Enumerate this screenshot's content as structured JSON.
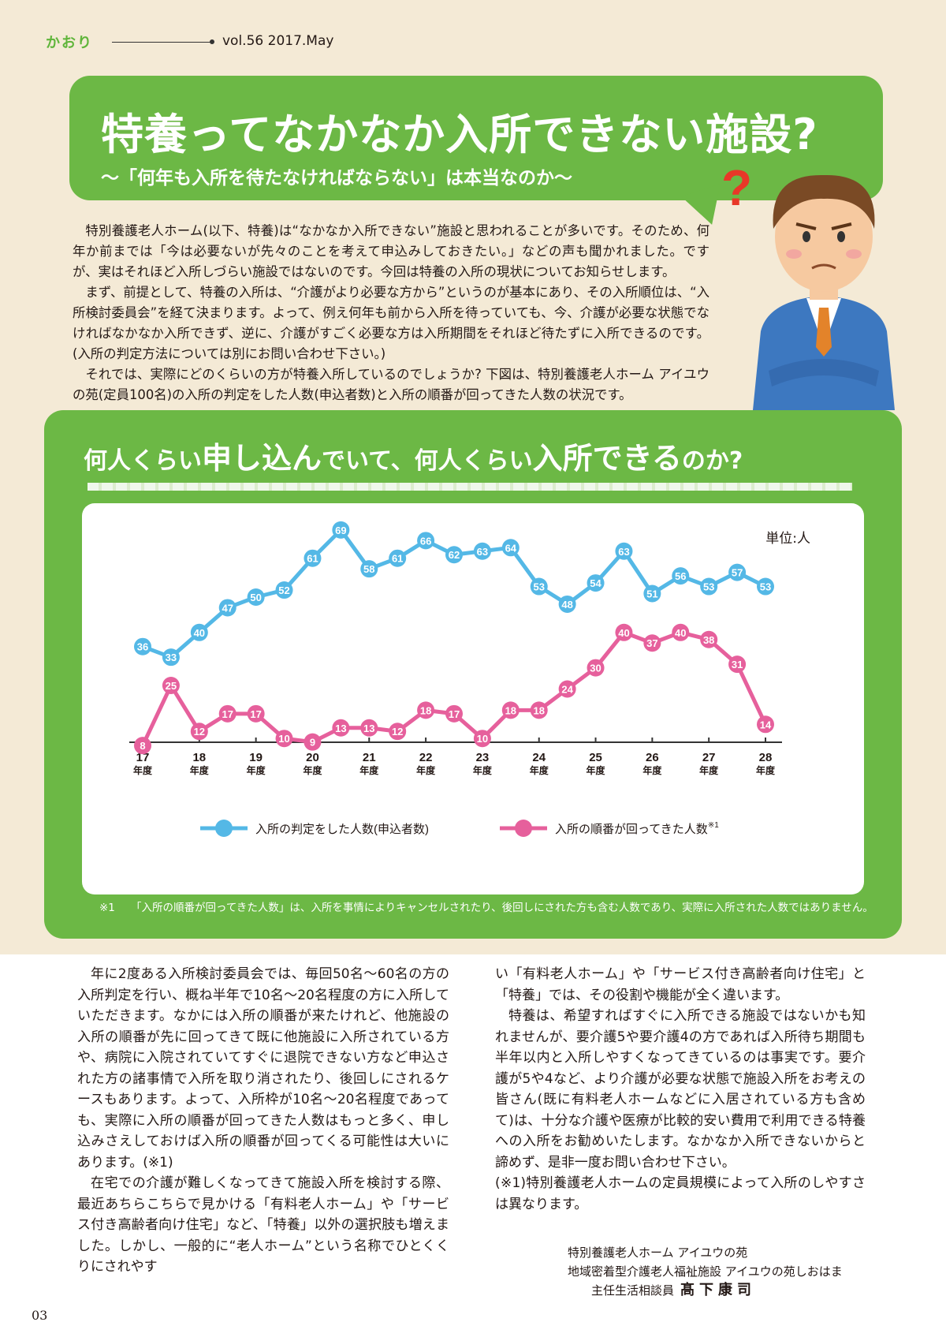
{
  "header": {
    "brand": "かおり",
    "vol": "vol.56 2017.May"
  },
  "title": {
    "main": "特養ってなかなか入所できない施設?",
    "sub": "〜「何年も入所を待たなければならない」は本当なのか〜"
  },
  "intro": [
    "特別養護老人ホーム(以下、特養)は“なかなか入所できない”施設と思われることが多いです。そのため、何年か前までは「今は必要ないが先々のことを考えて申込みしておきたい。」などの声も聞かれました。ですが、実はそれほど入所しづらい施設ではないのです。今回は特養の入所の現状についてお知らせします。",
    "まず、前提として、特養の入所は、“介護がより必要な方から”というのが基本にあり、その入所順位は、“入所検討委員会”を経て決まります。よって、例え何年も前から入所を待っていても、今、介護が必要な状態でなければなかなか入所できず、逆に、介護がすごく必要な方は入所期間をそれほど待たずに入所できるのです。(入所の判定方法については別にお問い合わせ下さい。)",
    "それでは、実際にどのくらいの方が特養入所しているのでしょうか? 下図は、特別養護老人ホーム アイユウの苑(定員100名)の入所の判定をした人数(申込者数)と入所の順番が回ってきた人数の状況です。"
  ],
  "graph": {
    "title_a": "何人くらい",
    "title_b": "申し込ん",
    "title_c": "でいて、何人くらい",
    "title_d": "入所できる",
    "title_e": "のか?",
    "unit": "単位:人",
    "footnote_mark": "※1",
    "footnote": "「入所の順番が回ってきた人数」は、入所を事情によりキャンセルされたり、後回しにされた方も含む人数であり、実際に入所された人数ではありません。"
  },
  "chart_data": {
    "type": "line",
    "x_labels": [
      "17",
      "18",
      "19",
      "20",
      "21",
      "22",
      "23",
      "24",
      "25",
      "26",
      "27",
      "28"
    ],
    "x_suffix": "年度",
    "ylim": [
      0,
      75
    ],
    "series": [
      {
        "name": "入所の判定をした人数(申込者数)",
        "color": "#54b8e6",
        "values": [
          36,
          33,
          40,
          47,
          50,
          52,
          61,
          69,
          58,
          61,
          66,
          62,
          63,
          64,
          53,
          48,
          54,
          63,
          51,
          56,
          53,
          57,
          53
        ]
      },
      {
        "name": "入所の順番が回ってきた人数",
        "note": "※1",
        "color": "#e6609c",
        "values": [
          8,
          25,
          12,
          17,
          17,
          10,
          9,
          13,
          13,
          12,
          18,
          17,
          10,
          18,
          18,
          24,
          30,
          40,
          37,
          40,
          38,
          31,
          14
        ]
      }
    ]
  },
  "body": {
    "col1": [
      "年に2度ある入所検討委員会では、毎回50名〜60名の方の入所判定を行い、概ね半年で10名〜20名程度の方に入所していただきます。なかには入所の順番が来たけれど、他施設の入所の順番が先に回ってきて既に他施設に入所されている方や、病院に入院されていてすぐに退院できない方など申込された方の諸事情で入所を取り消されたり、後回しにされるケースもあります。よって、入所枠が10名〜20名程度であっても、実際に入所の順番が回ってきた人数はもっと多く、申し込みさえしておけば入所の順番が回ってくる可能性は大いにあります。(※1)",
      "在宅での介護が難しくなってきて施設入所を検討する際、最近あちらこちらで見かける「有料老人ホーム」や「サービス付き高齢者向け住宅」など、「特養」以外の選択肢も増えました。しかし、一般的に“老人ホーム”という名称でひとくくりにされやす"
    ],
    "col2_cont": "い「有料老人ホーム」や「サービス付き高齢者向け住宅」と「特養」では、その役割や機能が全く違います。",
    "col2": [
      "特養は、希望すればすぐに入所できる施設ではないかも知れませんが、要介護5や要介護4の方であれば入所待ち期間も半年以内と入所しやすくなってきているのは事実です。要介護が5や4など、より介護が必要な状態で施設入所をお考えの皆さん(既に有料老人ホームなどに入居されている方も含めて)は、十分な介護や医療が比較的安い費用で利用できる特養への入所をお勧めいたします。なかなか入所できないからと諦めず、是非一度お問い合わせ下さい。"
    ],
    "col2_note": "(※1)特別養護老人ホームの定員規模によって入所のしやすさは異なります。"
  },
  "signature": {
    "line1": "特別養護老人ホーム アイユウの苑",
    "line2": "地域密着型介護老人福祉施設 アイユウの苑しおはま",
    "line3": "主任生活相談員",
    "name": "髙下康司"
  },
  "page_number": "03"
}
